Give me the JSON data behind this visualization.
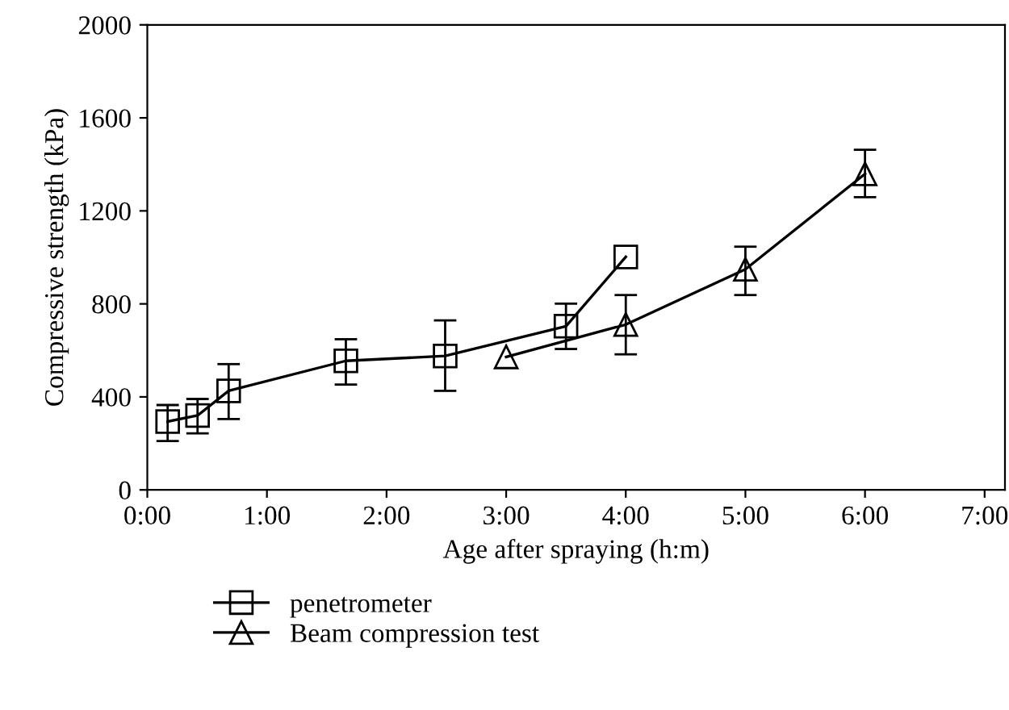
{
  "chart_data": {
    "type": "line",
    "xlabel": "Age after spraying (h:m)",
    "ylabel": "Compressive strength (kPa)",
    "xlim": [
      0,
      7.17
    ],
    "ylim": [
      0,
      2000
    ],
    "xticks": [
      {
        "value": 0,
        "label": "0:00"
      },
      {
        "value": 1,
        "label": "1:00"
      },
      {
        "value": 2,
        "label": "2:00"
      },
      {
        "value": 3,
        "label": "3:00"
      },
      {
        "value": 4,
        "label": "4:00"
      },
      {
        "value": 5,
        "label": "5:00"
      },
      {
        "value": 6,
        "label": "6:00"
      },
      {
        "value": 7,
        "label": "7:00"
      }
    ],
    "yticks": [
      0,
      400,
      800,
      1200,
      1600,
      2000
    ],
    "grid": false,
    "legend": "bottom left",
    "series": [
      {
        "name": "penetrometer",
        "color": "#000000",
        "marker": "square",
        "x": [
          0.17,
          0.42,
          0.68,
          1.66,
          2.49,
          3.5,
          4.0
        ],
        "values": [
          294,
          320,
          426,
          555,
          576,
          704,
          1002
        ],
        "errors": [
          [
            210,
            365
          ],
          [
            243,
            391
          ],
          [
            305,
            541
          ],
          [
            453,
            648
          ],
          [
            426,
            729
          ],
          [
            606,
            801
          ],
          null
        ]
      },
      {
        "name": "Beam compression test",
        "color": "#000000",
        "marker": "triangle",
        "x": [
          3.0,
          4.0,
          5.0,
          6.0
        ],
        "values": [
          572,
          711,
          949,
          1359
        ],
        "errors": [
          null,
          [
            583,
            838
          ],
          [
            838,
            1046
          ],
          [
            1259,
            1463
          ]
        ]
      }
    ]
  }
}
